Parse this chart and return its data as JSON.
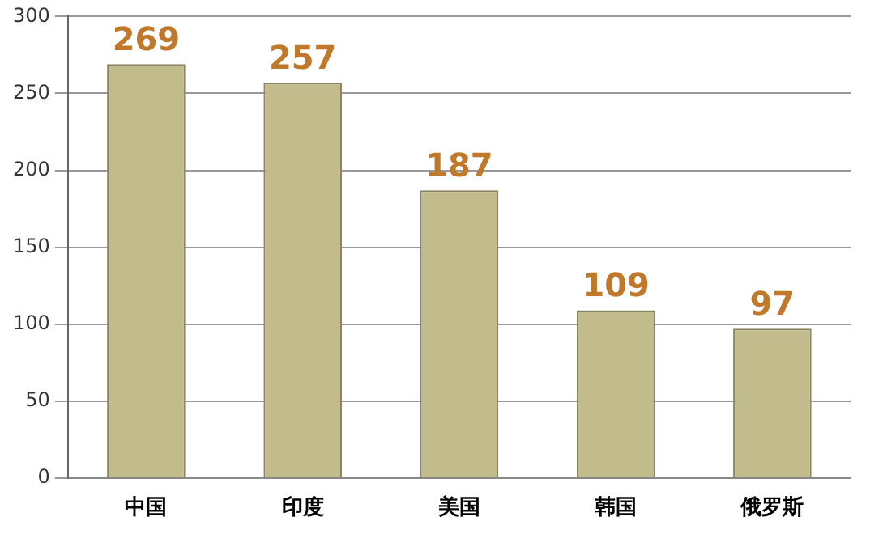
{
  "chart_data": {
    "type": "bar",
    "categories": [
      "中国",
      "印度",
      "美国",
      "韩国",
      "俄罗斯"
    ],
    "values": [
      269,
      257,
      187,
      109,
      97
    ],
    "color": "#c2bb8c",
    "ylim": [
      0,
      300
    ],
    "yticks": [
      0,
      50,
      100,
      150,
      200,
      250,
      300
    ],
    "grid": "y",
    "data_labels": true,
    "legend": false
  }
}
